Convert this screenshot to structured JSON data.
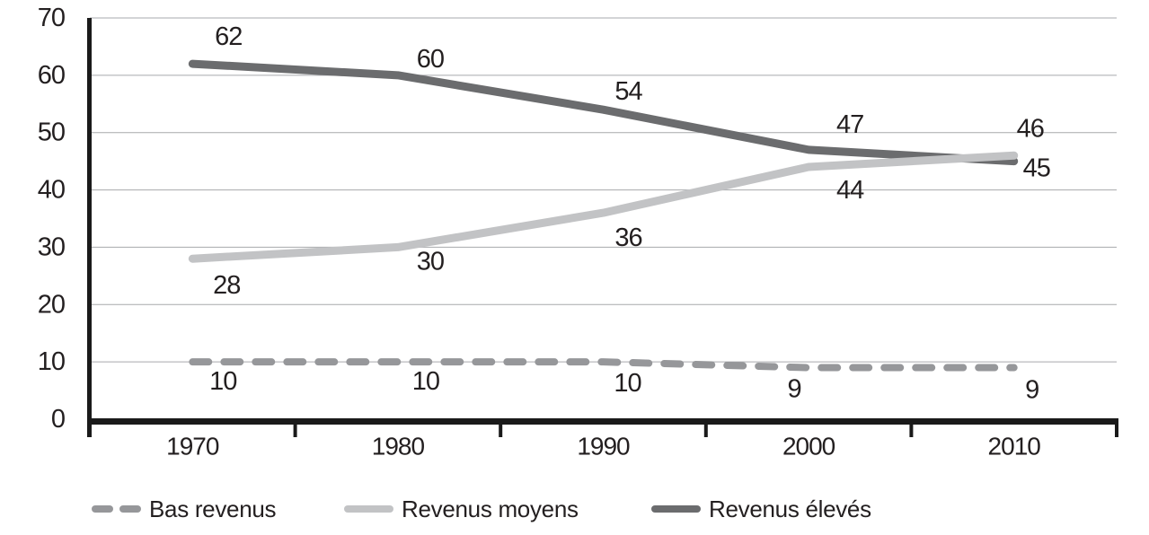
{
  "chart_data": {
    "type": "line",
    "title": "",
    "xlabel": "",
    "ylabel": "",
    "categories": [
      "1970",
      "1980",
      "1990",
      "2000",
      "2010"
    ],
    "series": [
      {
        "name": "Bas revenus",
        "values": [
          10,
          10,
          10,
          9,
          9
        ],
        "color": "#96979a",
        "style": "dashed"
      },
      {
        "name": "Revenus moyens",
        "values": [
          28,
          30,
          36,
          44,
          46
        ],
        "color": "#c2c3c5",
        "style": "solid"
      },
      {
        "name": "Revenus élevés",
        "values": [
          62,
          60,
          54,
          47,
          45
        ],
        "color": "#6b6c6e",
        "style": "solid"
      }
    ],
    "ylim": [
      0,
      70
    ],
    "y_ticks": [
      0,
      10,
      20,
      30,
      40,
      50,
      60,
      70
    ],
    "grid": "horizontal",
    "data_labels": true,
    "legend_position": "bottom",
    "colors": {
      "text": "#231f20",
      "axis": "#1a1a1a",
      "gridline": "#a7a9ac",
      "background": "#ffffff"
    }
  }
}
